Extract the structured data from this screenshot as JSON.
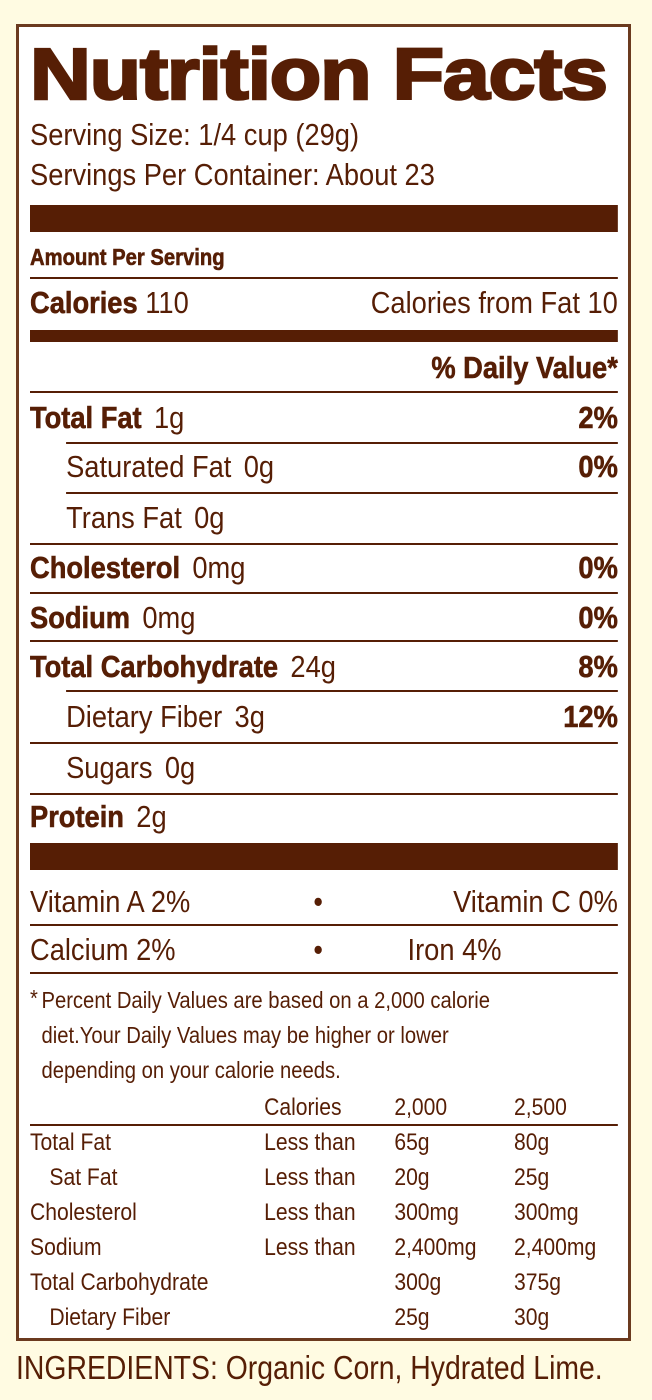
{
  "title": "Nutrition Facts",
  "serving_size": "Serving Size: 1/4 cup (29g)",
  "servings_per_container": "Servings Per Container: About 23",
  "amount_per_serving": "Amount Per Serving",
  "calories": {
    "label": "Calories",
    "value": "110",
    "from_fat": "Calories from Fat 10"
  },
  "daily_value_header": "% Daily Value*",
  "nutrients": [
    {
      "label": "Total Fat",
      "amount": "1g",
      "dv": "2%"
    },
    {
      "label": "Saturated Fat",
      "amount": "0g",
      "dv": "0%"
    },
    {
      "label": "Trans Fat",
      "amount": "0g"
    },
    {
      "label": "Cholesterol",
      "amount": "0mg",
      "dv": "0%"
    },
    {
      "label": "Sodium",
      "amount": "0mg",
      "dv": "0%"
    },
    {
      "label": "Total Carbohydrate",
      "amount": "24g",
      "dv": "8%"
    },
    {
      "label": "Dietary Fiber",
      "amount": "3g",
      "dv": "12%"
    },
    {
      "label": "Sugars",
      "amount": "0g"
    },
    {
      "label": "Protein",
      "amount": "2g"
    }
  ],
  "vitamins": [
    {
      "left": "Vitamin A 2%",
      "right": "Vitamin C 0%",
      "separator": "•"
    },
    {
      "left": "Calcium 2%",
      "right": "Iron 4%",
      "separator": "•"
    }
  ],
  "footnote": {
    "marker": "*",
    "lines": [
      "Percent Daily Values are based on a 2,000 calorie",
      "diet.Your Daily Values may be higher or lower",
      "depending on your calorie needs."
    ]
  },
  "reference_table": {
    "header": [
      "",
      "Calories",
      "2,000",
      "2,500"
    ],
    "rows": [
      [
        "Total Fat",
        "Less than",
        "65g",
        "80g"
      ],
      [
        "Sat Fat",
        "Less than",
        "20g",
        "25g"
      ],
      [
        "Cholesterol",
        "Less than",
        "300mg",
        "300mg"
      ],
      [
        "Sodium",
        "Less than",
        "2,400mg",
        "2,400mg"
      ],
      [
        "Total Carbohydrate",
        "",
        "300g",
        "375g"
      ],
      [
        "Dietary Fiber",
        "",
        "25g",
        "30g"
      ]
    ]
  },
  "ingredients": "INGREDIENTS: Organic Corn, Hydrated Lime.",
  "colors": {
    "text": "#561e05",
    "background": "#fffbe2",
    "panel": "#ffffff"
  }
}
